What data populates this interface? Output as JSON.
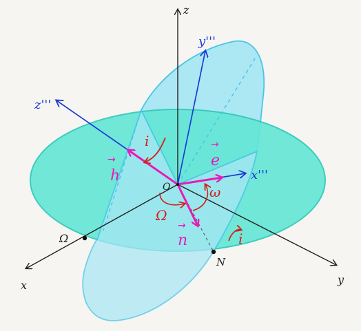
{
  "colors": {
    "background": "#f6f5f1",
    "reference_plane_fill": "#63e6d6",
    "reference_plane_stroke": "#2bc8b8",
    "orbital_plane_fill": "#a9e7f5",
    "orbital_plane_stroke": "#3fc3e6",
    "inertial_axes": "#222222",
    "orbital_axes": "#1a3bd6",
    "vectors": "#e81ab8",
    "angles": "#d0201e"
  },
  "labels": {
    "axis_z": "z",
    "axis_x": "x",
    "axis_y": "y",
    "axis_x3": "x'''",
    "axis_y3": "y'''",
    "axis_z3": "z'''",
    "origin": "O",
    "vector_h": "h",
    "vector_e": "e",
    "vector_n": "n",
    "angle_i_upper": "i",
    "angle_i_lower": "i",
    "angle_omega_small": "ω",
    "angle_omega_big": "Ω",
    "point_ascending_node": "Ω",
    "point_node": "N"
  }
}
